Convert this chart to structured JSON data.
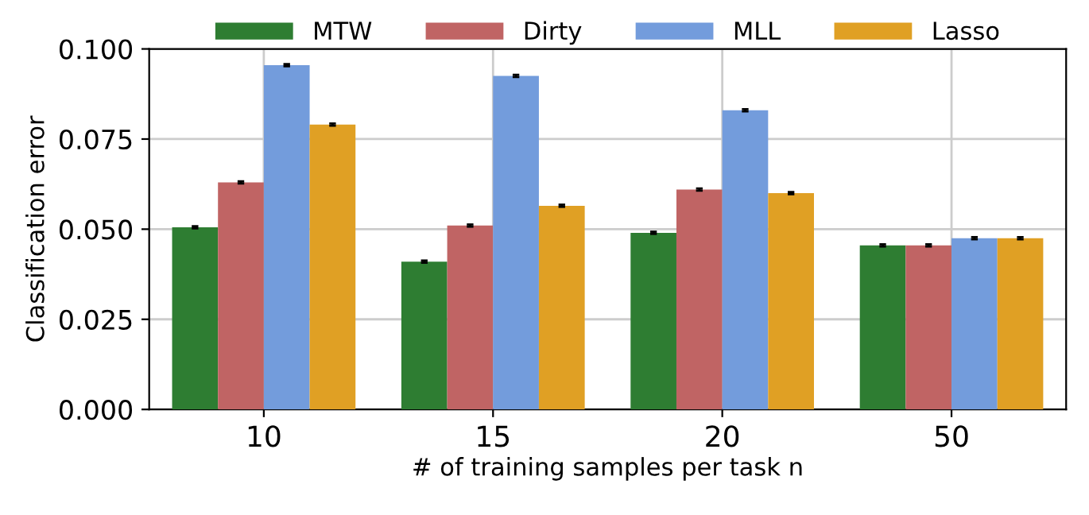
{
  "chart_data": {
    "type": "bar",
    "xlabel": "# of training samples per task n",
    "ylabel": "Classification error",
    "categories": [
      "10",
      "15",
      "20",
      "50"
    ],
    "series": [
      {
        "name": "MTW",
        "color": "#2e7d32",
        "values": [
          0.0505,
          0.041,
          0.049,
          0.0455
        ],
        "errors": [
          0.0003,
          0.0003,
          0.0003,
          0.0003
        ]
      },
      {
        "name": "Dirty",
        "color": "#c06464",
        "values": [
          0.063,
          0.051,
          0.061,
          0.0455
        ],
        "errors": [
          0.0003,
          0.0003,
          0.0003,
          0.0003
        ]
      },
      {
        "name": "MLL",
        "color": "#739cdc",
        "values": [
          0.0955,
          0.0925,
          0.083,
          0.0475
        ],
        "errors": [
          0.0003,
          0.0003,
          0.0003,
          0.0003
        ]
      },
      {
        "name": "Lasso",
        "color": "#e0a024",
        "values": [
          0.079,
          0.0565,
          0.06,
          0.0475
        ],
        "errors": [
          0.0003,
          0.0003,
          0.0003,
          0.0003
        ]
      }
    ],
    "ylim": [
      0,
      0.1
    ],
    "yticks": [
      {
        "value": 0,
        "label": "0.000"
      },
      {
        "value": 0.025,
        "label": "0.025"
      },
      {
        "value": 0.05,
        "label": "0.050"
      },
      {
        "value": 0.075,
        "label": "0.075"
      },
      {
        "value": 0.1,
        "label": "0.100"
      }
    ],
    "grid": true,
    "legend": "top"
  }
}
